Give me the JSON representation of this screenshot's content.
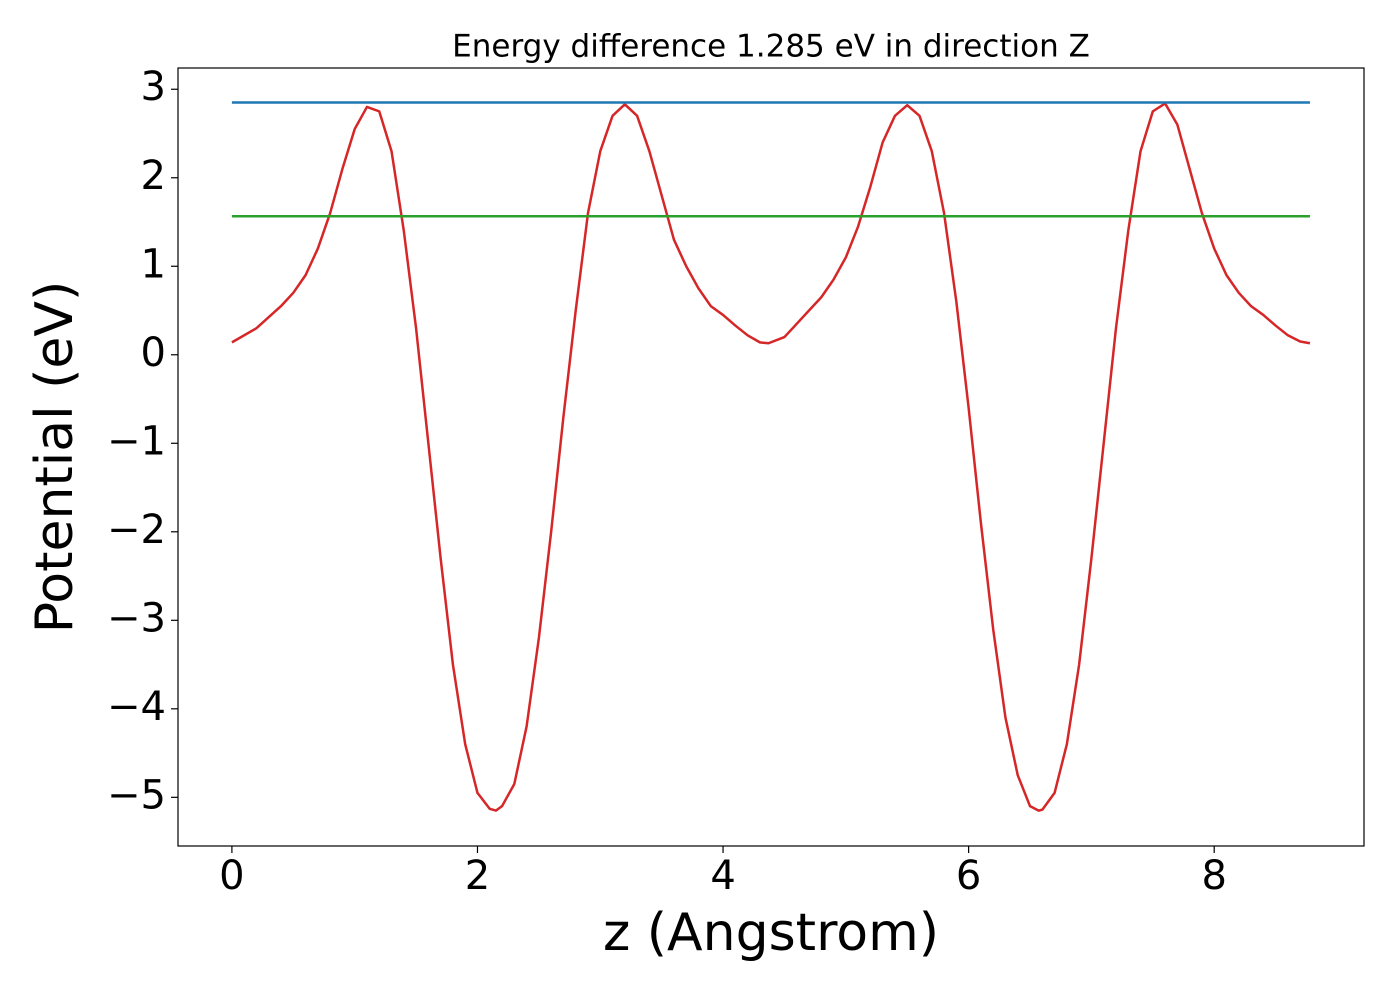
{
  "chart_data": {
    "type": "line",
    "title": "Energy difference 1.285 eV in direction Z",
    "x_label": "z (Angstrom)",
    "y_label": "Potential (eV)",
    "xlim": [
      -0.439,
      9.22
    ],
    "ylim": [
      -5.55,
      3.24
    ],
    "xticks": [
      0,
      2,
      4,
      6,
      8
    ],
    "yticks": [
      {
        "value": -5,
        "label": "−5"
      },
      {
        "value": -4,
        "label": "−4"
      },
      {
        "value": -3,
        "label": "−3"
      },
      {
        "value": -2,
        "label": "−2"
      },
      {
        "value": -1,
        "label": "−1"
      },
      0,
      1,
      2,
      3
    ],
    "grid": false,
    "series": [
      {
        "color": "#d62728",
        "x": [
          0,
          0.2,
          0.4,
          0.5,
          0.6,
          0.7,
          0.8,
          0.9,
          1.0,
          1.1,
          1.2,
          1.3,
          1.4,
          1.5,
          1.6,
          1.7,
          1.8,
          1.9,
          2.0,
          2.1,
          2.15,
          2.2,
          2.3,
          2.4,
          2.5,
          2.6,
          2.7,
          2.8,
          2.9,
          3.0,
          3.1,
          3.2,
          3.3,
          3.4,
          3.5,
          3.6,
          3.7,
          3.8,
          3.9,
          4.0,
          4.1,
          4.2,
          4.3,
          4.37,
          4.5,
          4.6,
          4.7,
          4.8,
          4.9,
          5.0,
          5.1,
          5.2,
          5.3,
          5.4,
          5.5,
          5.6,
          5.7,
          5.8,
          5.9,
          6.0,
          6.1,
          6.2,
          6.3,
          6.4,
          6.5,
          6.57,
          6.6,
          6.7,
          6.8,
          6.9,
          7.0,
          7.1,
          7.2,
          7.3,
          7.4,
          7.5,
          7.6,
          7.7,
          7.8,
          7.9,
          8.0,
          8.1,
          8.2,
          8.3,
          8.4,
          8.5,
          8.6,
          8.7,
          8.78
        ],
        "values": [
          0.14,
          0.3,
          0.55,
          0.7,
          0.9,
          1.2,
          1.6,
          2.1,
          2.55,
          2.8,
          2.75,
          2.3,
          1.4,
          0.3,
          -1.0,
          -2.3,
          -3.5,
          -4.4,
          -4.95,
          -5.13,
          -5.15,
          -5.1,
          -4.85,
          -4.2,
          -3.2,
          -2.0,
          -0.7,
          0.5,
          1.6,
          2.3,
          2.7,
          2.83,
          2.7,
          2.3,
          1.8,
          1.3,
          1.0,
          0.75,
          0.55,
          0.45,
          0.33,
          0.22,
          0.14,
          0.13,
          0.2,
          0.35,
          0.5,
          0.65,
          0.85,
          1.1,
          1.45,
          1.9,
          2.4,
          2.7,
          2.82,
          2.7,
          2.3,
          1.6,
          0.6,
          -0.6,
          -1.9,
          -3.1,
          -4.1,
          -4.75,
          -5.1,
          -5.15,
          -5.14,
          -4.95,
          -4.4,
          -3.5,
          -2.3,
          -1.0,
          0.3,
          1.4,
          2.3,
          2.75,
          2.84,
          2.6,
          2.1,
          1.6,
          1.2,
          0.9,
          0.7,
          0.55,
          0.45,
          0.33,
          0.22,
          0.15,
          0.13
        ]
      },
      {
        "color": "#1f77b4",
        "x": [
          0,
          8.78
        ],
        "values": [
          2.85,
          2.85
        ]
      },
      {
        "color": "#2ca02c",
        "x": [
          0,
          8.78
        ],
        "values": [
          1.565,
          1.565
        ]
      }
    ]
  }
}
